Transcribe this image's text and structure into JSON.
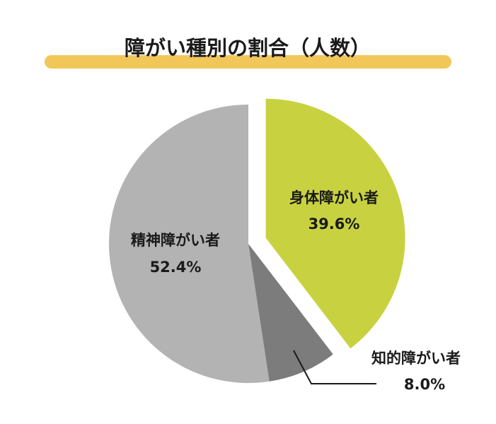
{
  "chart_data": {
    "type": "pie",
    "title": "障がい種別の割合（人数）",
    "slices": [
      {
        "name": "身体障がい者",
        "value": 39.6,
        "display": "39.6%",
        "color": "#c8d240",
        "exploded": true
      },
      {
        "name": "知的障がい者",
        "value": 8.0,
        "display": "8.0%",
        "color": "#7c7c7c",
        "exploded": false
      },
      {
        "name": "精神障がい者",
        "value": 52.4,
        "display": "52.4%",
        "color": "#b3b3b3",
        "exploded": false
      }
    ],
    "colors": {
      "title_bar": "#f2c75a",
      "text": "#1a1a1a",
      "leader_line": "#1a1a1a"
    }
  }
}
